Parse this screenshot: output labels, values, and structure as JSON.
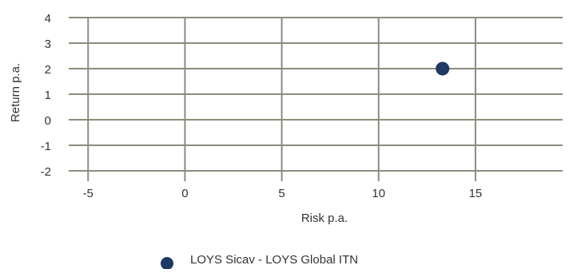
{
  "chart_data": {
    "type": "scatter",
    "title": "",
    "xlabel": "Risk p.a.",
    "ylabel": "Return p.a.",
    "xlim": [
      -6,
      19.5
    ],
    "ylim": [
      -2,
      4
    ],
    "x_ticks": [
      -5,
      0,
      5,
      10,
      15
    ],
    "y_ticks": [
      4,
      3,
      2,
      1,
      0,
      -1,
      -2
    ],
    "x_tick_labels": [
      "-5",
      "0",
      "5",
      "10",
      "15"
    ],
    "y_tick_labels": [
      "4",
      "3",
      "2",
      "1",
      "0",
      "-1",
      "-2"
    ],
    "grid": true,
    "legend_position": "bottom",
    "series": [
      {
        "name": "LOYS Sicav - LOYS Global ITN",
        "color": "#1f3864",
        "points": [
          {
            "x": 13.3,
            "y": 2.0
          }
        ]
      }
    ]
  },
  "colors": {
    "grid": "#8c8c7c",
    "axis": "#8c8c7c",
    "text": "#333333"
  }
}
